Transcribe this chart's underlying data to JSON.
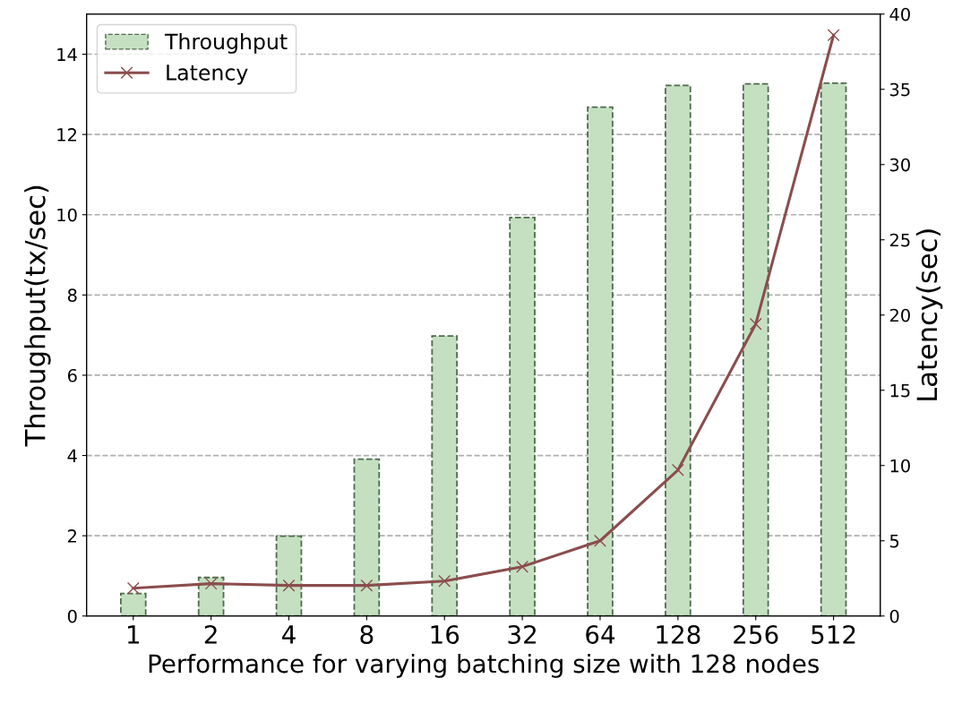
{
  "chart_data": {
    "type": "bar",
    "xlabel": "Performance for varying batching size with 128 nodes",
    "ylabel": "Throughput(tx/sec)",
    "y2label": "Latency(sec)",
    "categories": [
      "1",
      "2",
      "4",
      "8",
      "16",
      "32",
      "64",
      "128",
      "256",
      "512"
    ],
    "series": [
      {
        "name": "Throughput",
        "color": "#c5e0c1",
        "values": [
          0.56,
          0.96,
          1.99,
          3.91,
          6.98,
          9.93,
          12.68,
          13.22,
          13.26,
          13.28
        ]
      },
      {
        "name": "Latency",
        "type": "line",
        "axis": "y2",
        "color": "#8b4d4d",
        "marker": "cross",
        "values": [
          1.85,
          2.15,
          2.03,
          2.03,
          2.32,
          3.28,
          5.0,
          9.7,
          19.4,
          38.6
        ]
      }
    ],
    "ylim": [
      0,
      15
    ],
    "yticks": [
      0,
      2,
      4,
      6,
      8,
      10,
      12,
      14
    ],
    "y2lim": [
      0,
      40
    ],
    "y2ticks": [
      0,
      5,
      10,
      15,
      20,
      25,
      30,
      35,
      40
    ],
    "grid": "y",
    "legend": "top left"
  }
}
